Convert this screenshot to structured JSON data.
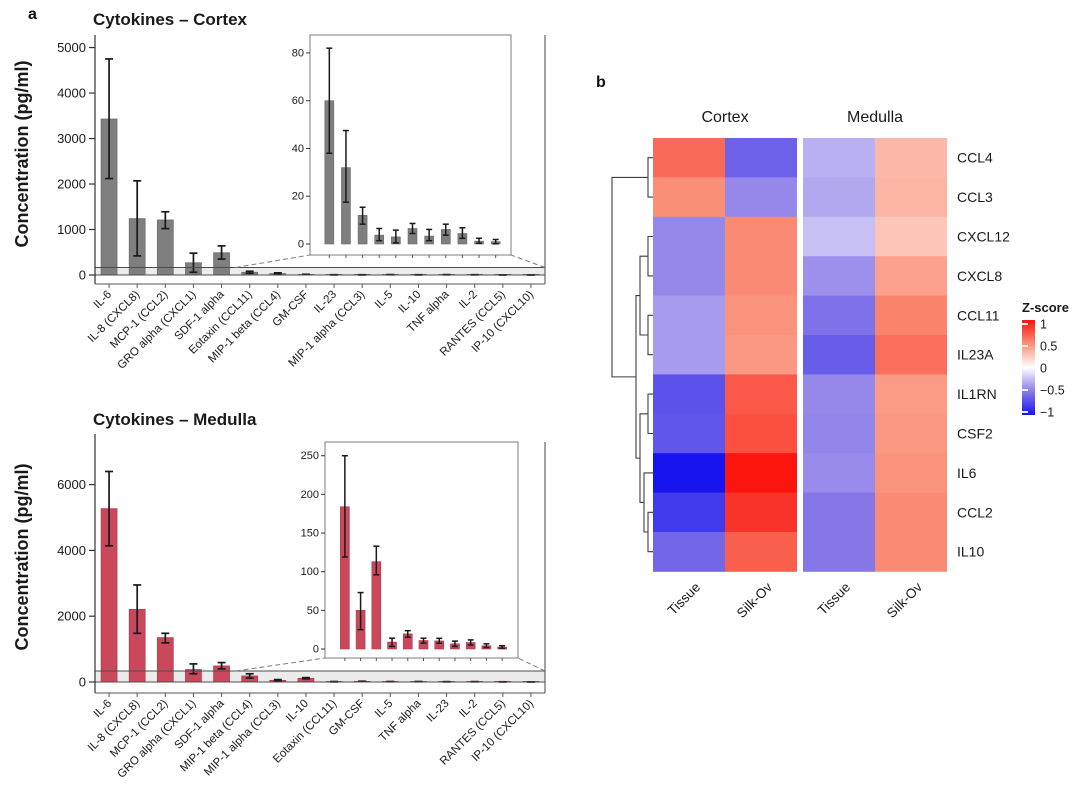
{
  "figure": {
    "panels": {
      "a_label": "a",
      "b_label": "b"
    }
  },
  "chart_data": [
    {
      "id": "cortex",
      "type": "bar",
      "title": "Cytokines – Cortex",
      "ylabel": "Concentration (pg/ml)",
      "bar_color": "#7f7f7f",
      "bar_edge": "#6a6a6a",
      "error_color": "#1a1a1a",
      "ylim": [
        0,
        5320
      ],
      "yticks": [
        0,
        1000,
        2000,
        3000,
        4000,
        5000
      ],
      "categories": [
        "IL-6",
        "IL-8 (CXCL8)",
        "MCP-1 (CCL2)",
        "GRO alpha (CXCL1)",
        "SDF-1 alpha",
        "Eotaxin (CCL11)",
        "MIP-1 beta (CCL4)",
        "GM-CSF",
        "IL-23",
        "MIP-1 alpha (CCL3)",
        "IL-5",
        "IL-10",
        "TNF alpha",
        "IL-2",
        "RANTES (CCL5)",
        "IP-10 (CXCL10)"
      ],
      "values": [
        3430,
        1240,
        1210,
        270,
        490,
        60,
        32,
        12,
        3.7,
        3.0,
        6.5,
        3.3,
        6.1,
        4.4,
        1.2,
        1.0
      ],
      "err_low": [
        2120,
        420,
        1020,
        60,
        350,
        38,
        17.5,
        8.3,
        1.4,
        0.5,
        4.4,
        1.4,
        3.7,
        2.4,
        0.3,
        0.1
      ],
      "err_high": [
        4750,
        2070,
        1390,
        480,
        640,
        82,
        47.5,
        15.4,
        6.5,
        5.8,
        8.6,
        6.1,
        8.3,
        6.8,
        2.4,
        1.9
      ],
      "inset": {
        "start_index": 5,
        "ylim": [
          0,
          85
        ],
        "yticks": [
          0,
          20,
          40,
          60,
          80
        ]
      }
    },
    {
      "id": "medulla",
      "type": "bar",
      "title": "Cytokines – Medulla",
      "ylabel": "Concentration (pg/ml)",
      "bar_color": "#c9485b",
      "bar_edge": "#b03a4e",
      "error_color": "#1a1a1a",
      "ylim": [
        0,
        7600
      ],
      "yticks": [
        0,
        2000,
        4000,
        6000
      ],
      "categories": [
        "IL-6",
        "IL-8 (CXCL8)",
        "MCP-1 (CCL2)",
        "GRO alpha (CXCL1)",
        "SDF-1 alpha",
        "MIP-1 beta (CCL4)",
        "MIP-1 alpha (CCL3)",
        "IL-10",
        "Eotaxin (CCL11)",
        "GM-CSF",
        "IL-5",
        "TNF alpha",
        "IL-23",
        "IL-2",
        "RANTES (CCL5)",
        "IP-10 (CXCL10)"
      ],
      "values": [
        5270,
        2210,
        1350,
        380,
        490,
        184,
        50,
        113,
        9,
        19.5,
        11,
        10.5,
        6.7,
        8.4,
        4.2,
        2.5
      ],
      "err_low": [
        4140,
        1480,
        1190,
        250,
        400,
        119,
        25,
        96,
        3.3,
        15.3,
        7.6,
        7.5,
        3.3,
        5.1,
        2.0,
        0.8
      ],
      "err_high": [
        6400,
        2950,
        1480,
        550,
        590,
        250,
        73,
        133,
        14,
        23.7,
        14,
        13.8,
        10.2,
        11.8,
        6.7,
        4.2
      ],
      "inset": {
        "start_index": 5,
        "ylim": [
          0,
          260
        ],
        "yticks": [
          0,
          50,
          100,
          150,
          200,
          250
        ]
      }
    },
    {
      "id": "heatmap",
      "type": "heatmap",
      "col_groups": [
        "Cortex",
        "Medulla"
      ],
      "col_labels": [
        "Tissue",
        "Silk-Ov",
        "Tissue",
        "Silk-Ov"
      ],
      "rows": [
        "CCL4",
        "CCL3",
        "CXCL12",
        "CXCL8",
        "CCL11",
        "IL23A",
        "IL1RN",
        "CSF2",
        "IL6",
        "CCL2",
        "IL10"
      ],
      "values": [
        [
          0.65,
          -0.62,
          -0.3,
          0.32
        ],
        [
          0.5,
          -0.45,
          -0.33,
          0.33
        ],
        [
          -0.45,
          0.52,
          -0.24,
          0.26
        ],
        [
          -0.45,
          0.52,
          -0.42,
          0.42
        ],
        [
          -0.38,
          0.48,
          -0.55,
          0.55
        ],
        [
          -0.38,
          0.46,
          -0.65,
          0.63
        ],
        [
          -0.7,
          0.72,
          -0.45,
          0.45
        ],
        [
          -0.68,
          0.76,
          -0.46,
          0.46
        ],
        [
          -1.0,
          1.0,
          -0.44,
          0.48
        ],
        [
          -0.82,
          0.88,
          -0.52,
          0.52
        ],
        [
          -0.6,
          0.7,
          -0.52,
          0.52
        ]
      ],
      "legend": {
        "title": "Z-score",
        "ticks": [
          1,
          0.5,
          0,
          -0.5,
          -1
        ],
        "domain": [
          -1,
          1
        ],
        "gradient_stops": [
          {
            "z": 1,
            "color": "#fb150e"
          },
          {
            "z": 0.5,
            "color": "#fa8f77"
          },
          {
            "z": 0,
            "color": "#ffffff"
          },
          {
            "z": -0.5,
            "color": "#8a7be8"
          },
          {
            "z": -1,
            "color": "#1814ef"
          }
        ]
      },
      "dendrogram_merges": [
        [
          0,
          1
        ],
        [
          2,
          3
        ],
        [
          4,
          5
        ],
        [
          "m1",
          "m2"
        ],
        [
          6,
          7
        ],
        [
          9,
          10
        ],
        [
          8,
          "m5"
        ],
        [
          "m4",
          "m6"
        ],
        [
          "m3",
          "m7"
        ],
        [
          "m0",
          "m8"
        ]
      ]
    }
  ]
}
